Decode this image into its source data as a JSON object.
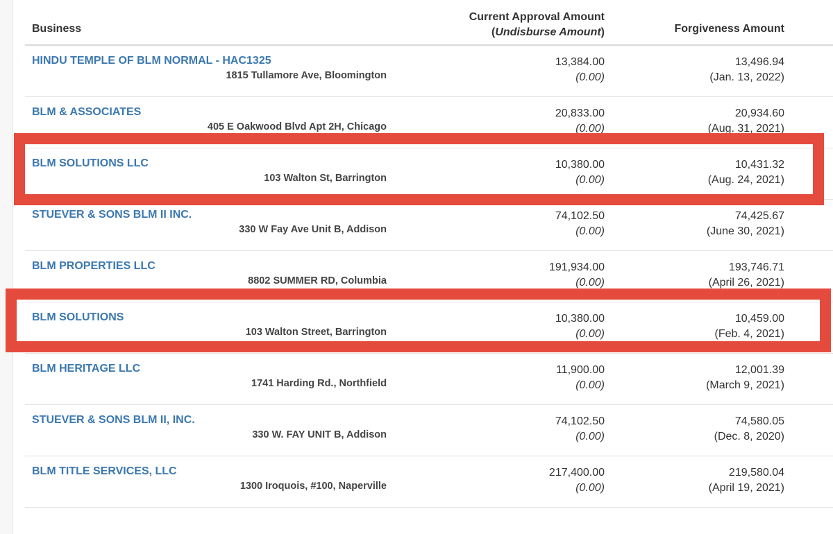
{
  "header": {
    "business": "Business",
    "approval_line1": "Current Approval Amount",
    "approval_line2_open": "(",
    "approval_line2_italic": "Undisburse Amount",
    "approval_line2_close": ")",
    "forgiveness": "Forgiveness Amount"
  },
  "rows": [
    {
      "name": "HINDU TEMPLE OF BLM NORMAL - HAC1325",
      "address": "1815 Tullamore Ave, Bloomington",
      "approval": "13,384.00",
      "undisbursed": "(0.00)",
      "forgiveness": "13,496.94",
      "forgiveness_date": "(Jan. 13, 2022)"
    },
    {
      "name": "BLM & ASSOCIATES",
      "address": "405 E Oakwood Blvd Apt 2H, Chicago",
      "approval": "20,833.00",
      "undisbursed": "(0.00)",
      "forgiveness": "20,934.60",
      "forgiveness_date": "(Aug. 31, 2021)"
    },
    {
      "name": "BLM SOLUTIONS LLC",
      "address": "103 Walton St, Barrington",
      "approval": "10,380.00",
      "undisbursed": "(0.00)",
      "forgiveness": "10,431.32",
      "forgiveness_date": "(Aug. 24, 2021)"
    },
    {
      "name": "STUEVER & SONS BLM II INC.",
      "address": "330 W Fay Ave Unit B, Addison",
      "approval": "74,102.50",
      "undisbursed": "(0.00)",
      "forgiveness": "74,425.67",
      "forgiveness_date": "(June 30, 2021)"
    },
    {
      "name": "BLM PROPERTIES LLC",
      "address": "8802 SUMMER RD, Columbia",
      "approval": "191,934.00",
      "undisbursed": "(0.00)",
      "forgiveness": "193,746.71",
      "forgiveness_date": "(April 26, 2021)"
    },
    {
      "name": "BLM SOLUTIONS",
      "address": "103 Walton Street, Barrington",
      "approval": "10,380.00",
      "undisbursed": "(0.00)",
      "forgiveness": "10,459.00",
      "forgiveness_date": "(Feb. 4, 2021)"
    },
    {
      "name": "BLM HERITAGE LLC",
      "address": "1741 Harding Rd., Northfield",
      "approval": "11,900.00",
      "undisbursed": "(0.00)",
      "forgiveness": "12,001.39",
      "forgiveness_date": "(March 9, 2021)"
    },
    {
      "name": "STUEVER & SONS BLM II, INC.",
      "address": "330 W. FAY UNIT B, Addison",
      "approval": "74,102.50",
      "undisbursed": "(0.00)",
      "forgiveness": "74,580.05",
      "forgiveness_date": "(Dec. 8, 2020)"
    },
    {
      "name": "BLM TITLE SERVICES, LLC",
      "address": "1300 Iroquois, #100, Naperville",
      "approval": "217,400.00",
      "undisbursed": "(0.00)",
      "forgiveness": "219,580.04",
      "forgiveness_date": "(April 19, 2021)"
    }
  ],
  "colors": {
    "link": "#3b78b0",
    "highlight": "#e54b3c",
    "text": "#333333"
  }
}
